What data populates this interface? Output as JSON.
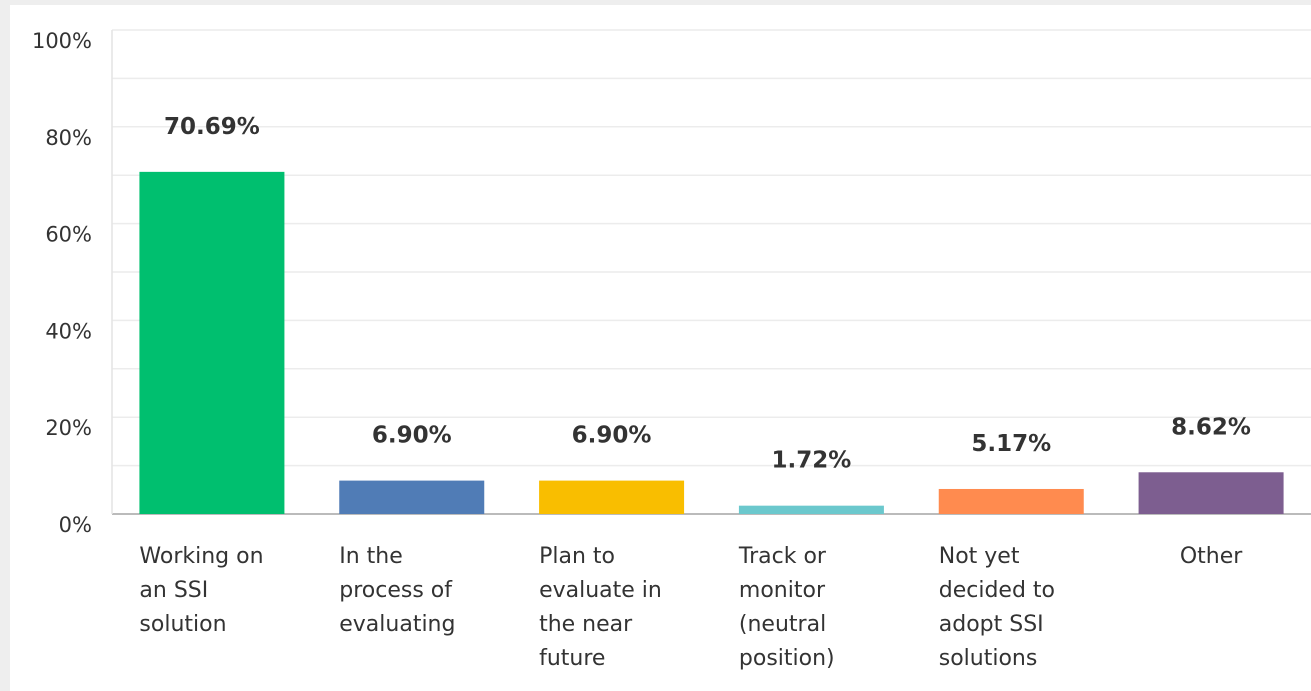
{
  "chart_data": {
    "type": "bar",
    "categories": [
      "Working on an SSI solution",
      "In the process of evaluating",
      "Plan to evaluate in the near future",
      "Track or monitor (neutral position)",
      "Not yet decided to adopt SSI solutions",
      "Other"
    ],
    "values": [
      70.69,
      6.9,
      6.9,
      1.72,
      5.17,
      8.62
    ],
    "value_labels": [
      "70.69%",
      "6.90%",
      "6.90%",
      "1.72%",
      "5.17%",
      "8.62%"
    ],
    "colors": [
      "#00bf6f",
      "#507cb6",
      "#f9be00",
      "#6bc8cd",
      "#ff8b4f",
      "#7d5e90"
    ],
    "ylim": [
      0,
      100
    ],
    "yticks": [
      {
        "value": 0,
        "label": "0%"
      },
      {
        "value": 20,
        "label": "20%"
      },
      {
        "value": 40,
        "label": "40%"
      },
      {
        "value": 60,
        "label": "60%"
      },
      {
        "value": 80,
        "label": "80%"
      },
      {
        "value": 100,
        "label": "100%"
      }
    ],
    "minor_yticks": [
      10,
      30,
      50,
      70,
      90
    ],
    "grid": true
  }
}
